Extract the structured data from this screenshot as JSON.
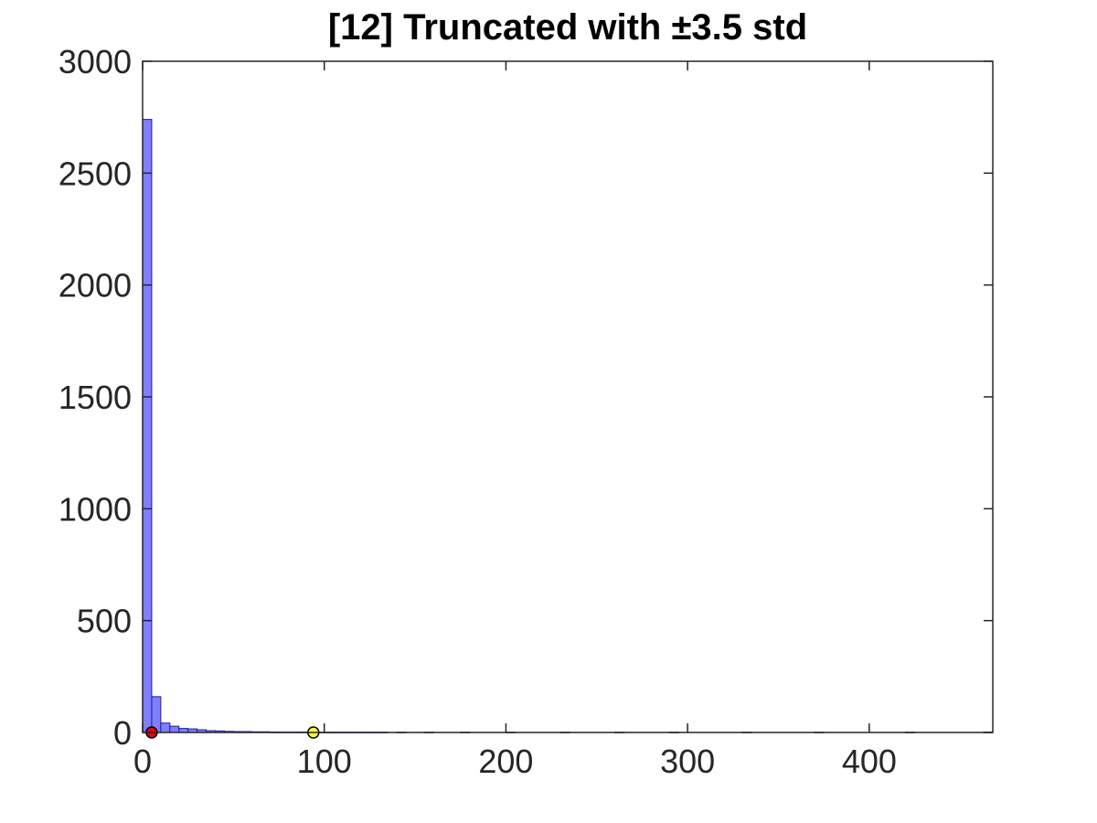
{
  "chart_data": {
    "type": "bar",
    "title": "[12] Truncated with ±3.5 std",
    "xlabel": "",
    "ylabel": "",
    "xlim": [
      0,
      468
    ],
    "ylim": [
      0,
      3000
    ],
    "xticks": [
      "0",
      "100",
      "200",
      "300",
      "400"
    ],
    "yticks": [
      "0",
      "500",
      "1000",
      "1500",
      "2000",
      "2500",
      "3000"
    ],
    "grid": false,
    "bin_width": 5,
    "bins": [
      {
        "x0": 0,
        "x1": 5,
        "count": 2740
      },
      {
        "x0": 5,
        "x1": 10,
        "count": 160
      },
      {
        "x0": 10,
        "x1": 15,
        "count": 42
      },
      {
        "x0": 15,
        "x1": 20,
        "count": 28
      },
      {
        "x0": 20,
        "x1": 25,
        "count": 18
      },
      {
        "x0": 25,
        "x1": 30,
        "count": 16
      },
      {
        "x0": 30,
        "x1": 35,
        "count": 12
      },
      {
        "x0": 35,
        "x1": 40,
        "count": 8
      },
      {
        "x0": 40,
        "x1": 45,
        "count": 7
      },
      {
        "x0": 45,
        "x1": 50,
        "count": 5
      },
      {
        "x0": 50,
        "x1": 55,
        "count": 4
      },
      {
        "x0": 55,
        "x1": 60,
        "count": 4
      },
      {
        "x0": 60,
        "x1": 65,
        "count": 3
      },
      {
        "x0": 65,
        "x1": 70,
        "count": 3
      },
      {
        "x0": 70,
        "x1": 75,
        "count": 2
      },
      {
        "x0": 75,
        "x1": 80,
        "count": 2
      },
      {
        "x0": 80,
        "x1": 85,
        "count": 2
      },
      {
        "x0": 85,
        "x1": 90,
        "count": 2
      },
      {
        "x0": 90,
        "x1": 95,
        "count": 1
      },
      {
        "x0": 95,
        "x1": 100,
        "count": 1
      },
      {
        "x0": 100,
        "x1": 105,
        "count": 1
      },
      {
        "x0": 105,
        "x1": 110,
        "count": 1
      },
      {
        "x0": 110,
        "x1": 115,
        "count": 1
      },
      {
        "x0": 115,
        "x1": 120,
        "count": 1
      },
      {
        "x0": 120,
        "x1": 125,
        "count": 1
      },
      {
        "x0": 125,
        "x1": 130,
        "count": 1
      },
      {
        "x0": 130,
        "x1": 135,
        "count": 1
      },
      {
        "x0": 140,
        "x1": 145,
        "count": 1
      },
      {
        "x0": 155,
        "x1": 160,
        "count": 1
      },
      {
        "x0": 175,
        "x1": 180,
        "count": 1
      },
      {
        "x0": 200,
        "x1": 205,
        "count": 1
      },
      {
        "x0": 230,
        "x1": 235,
        "count": 1
      },
      {
        "x0": 260,
        "x1": 265,
        "count": 1
      },
      {
        "x0": 290,
        "x1": 295,
        "count": 1
      },
      {
        "x0": 330,
        "x1": 335,
        "count": 1
      },
      {
        "x0": 370,
        "x1": 375,
        "count": 1
      },
      {
        "x0": 420,
        "x1": 425,
        "count": 1
      },
      {
        "x0": 463,
        "x1": 468,
        "count": 2
      }
    ],
    "markers": [
      {
        "x": 5,
        "y": 0,
        "color": "#e8000b"
      },
      {
        "x": 94,
        "y": 0,
        "color": "#ffff33"
      }
    ],
    "colors": {
      "bar_fill": "#7f7fff",
      "bar_edge": "#1f1f8f",
      "axis": "#262626"
    }
  }
}
